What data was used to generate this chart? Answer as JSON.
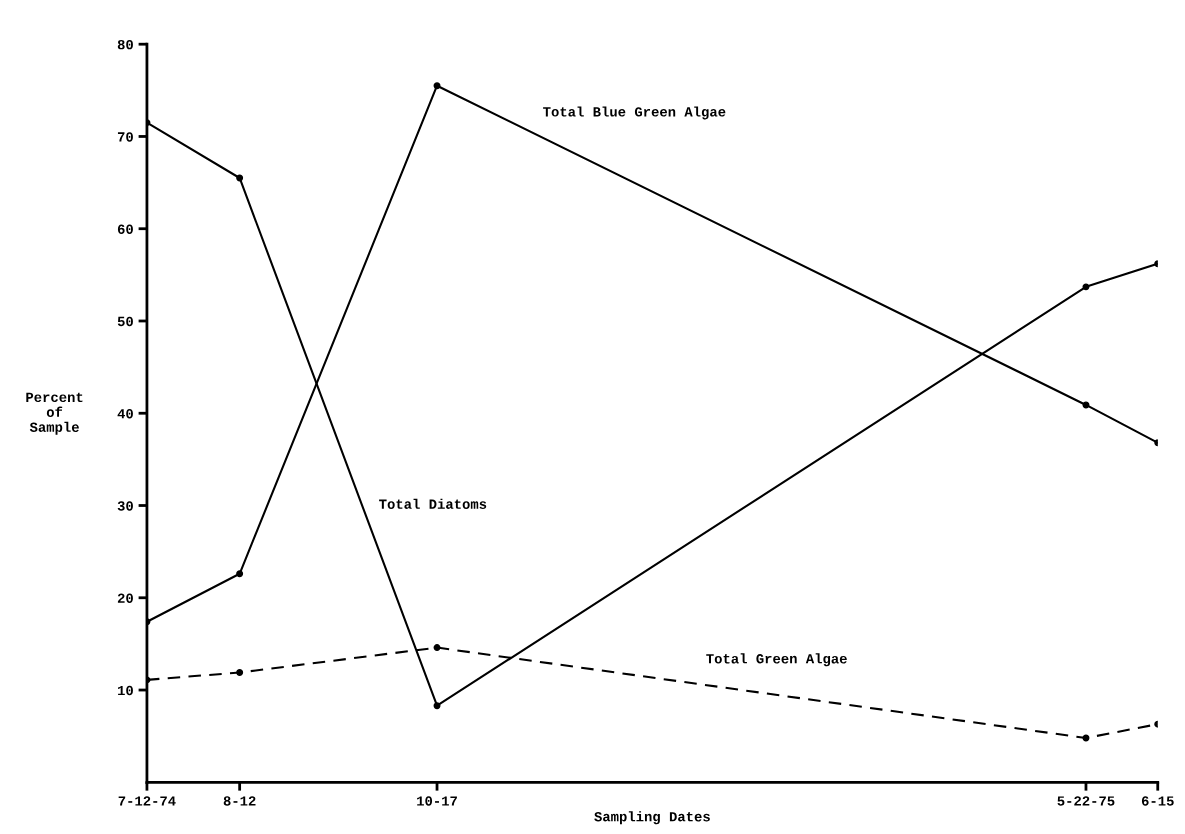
{
  "chart_data": {
    "type": "line",
    "xlabel": "Sampling Dates",
    "ylabel": "Percent\nof\nSample",
    "x": [
      "1974-07-12",
      "1974-08-12",
      "1974-10-17",
      "1975-05-22",
      "1975-06-15"
    ],
    "series": [
      {
        "name": "Total Diatoms",
        "color": "#000000",
        "line_style": "solid",
        "values": [
          71.5,
          65.5,
          8.3,
          53.7,
          56.2
        ]
      },
      {
        "name": "Total Blue Green Algae",
        "color": "#000000",
        "line_style": "solid",
        "values": [
          17.4,
          22.6,
          75.5,
          40.9,
          36.8
        ]
      },
      {
        "name": "Total Green Algae",
        "color": "#000000",
        "line_style": "dashed",
        "values": [
          11.1,
          11.9,
          14.6,
          4.8,
          6.3
        ]
      }
    ],
    "xlim": [
      "1974-07-12",
      "1975-06-15"
    ],
    "xticks": [
      {
        "value": "1974-07-12",
        "label": "7-12-74"
      },
      {
        "value": "1974-08-12",
        "label": "8-12"
      },
      {
        "value": "1974-10-17",
        "label": "10-17"
      },
      {
        "value": "1975-05-22",
        "label": "5-22-75"
      },
      {
        "value": "1975-06-15",
        "label": "6-15"
      }
    ],
    "ylim": [
      0,
      80
    ],
    "yticks": [
      10,
      20,
      30,
      40,
      50,
      60,
      70,
      80
    ],
    "grid": false,
    "legend": false,
    "marker": "circle"
  }
}
